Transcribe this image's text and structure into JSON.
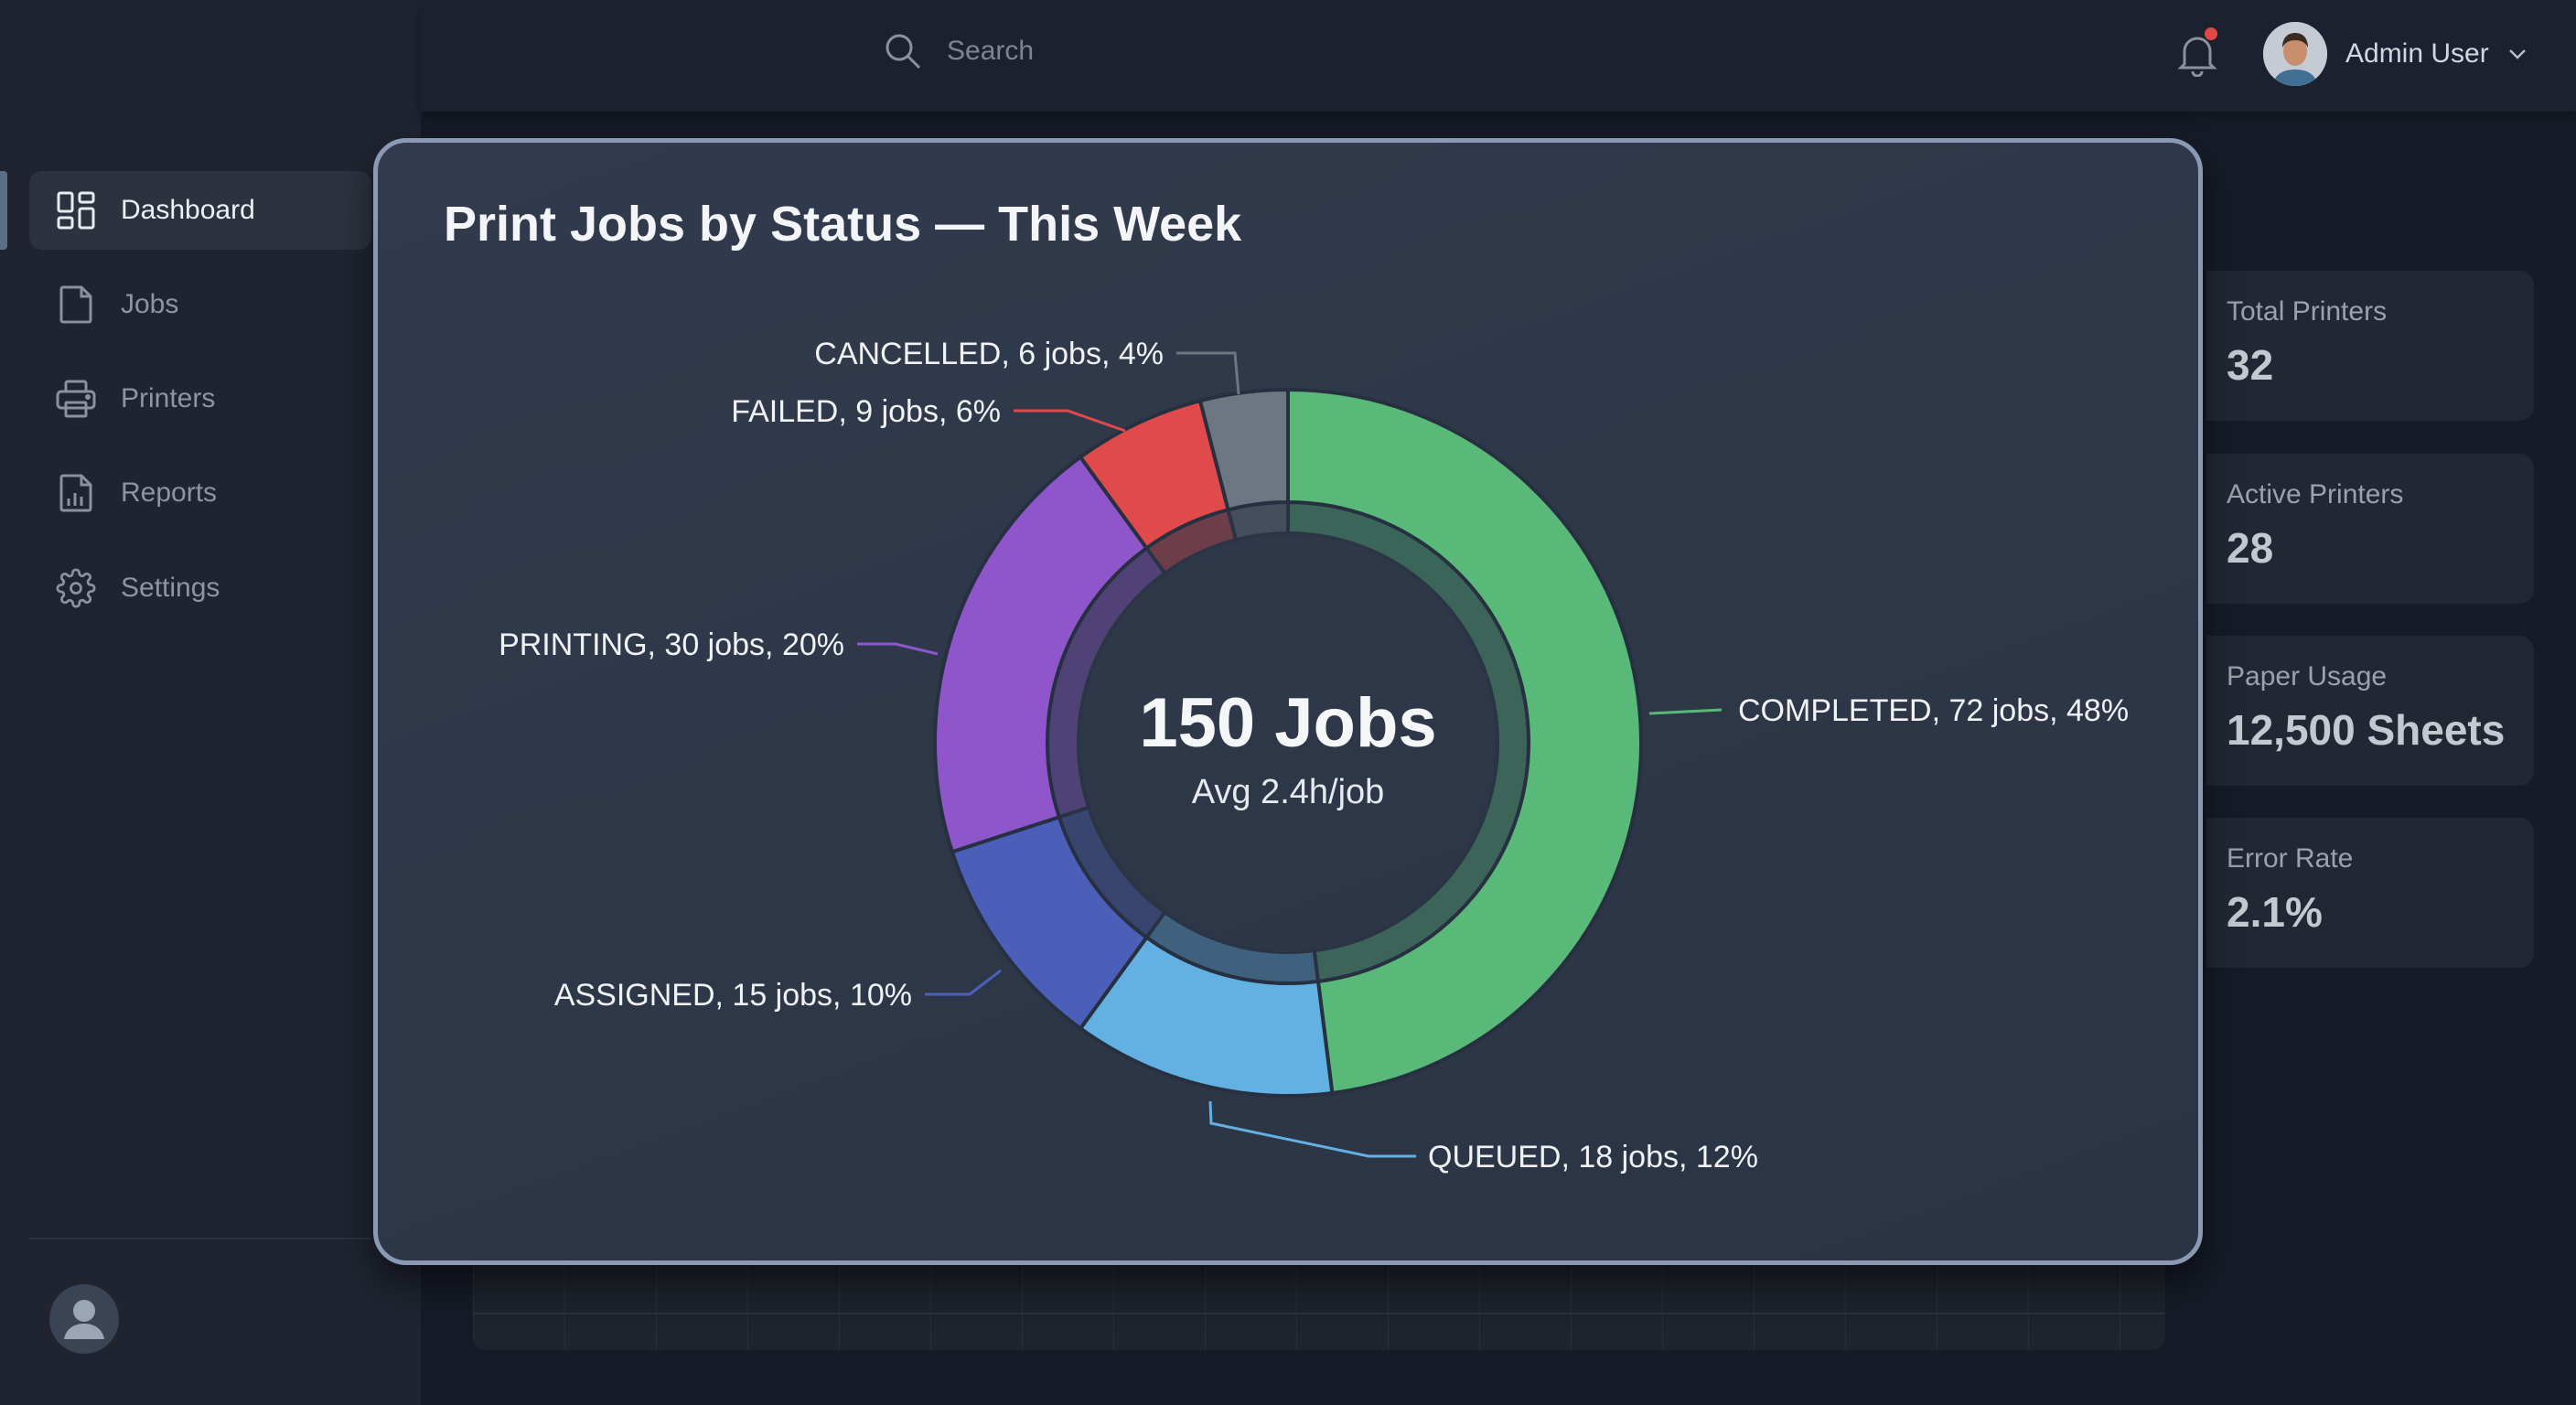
{
  "header": {
    "search_placeholder": "Search",
    "user_name": "Admin User",
    "notification_dot_color": "#e24848"
  },
  "sidebar": {
    "items": [
      {
        "label": "Dashboard",
        "icon": "dashboard-icon",
        "active": true
      },
      {
        "label": "Jobs",
        "icon": "file-icon"
      },
      {
        "label": "Printers",
        "icon": "printer-icon"
      },
      {
        "label": "Reports",
        "icon": "report-icon"
      },
      {
        "label": "Settings",
        "icon": "gear-icon"
      }
    ]
  },
  "stats": [
    {
      "label": "Total Printers",
      "value": "32"
    },
    {
      "label": "Active Printers",
      "value": "28"
    },
    {
      "label": "Paper Usage",
      "value": "12,500 Sheets"
    },
    {
      "label": "Error Rate",
      "value": "2.1%"
    }
  ],
  "chart_data": {
    "type": "pie",
    "variant": "donut",
    "title": "Print Jobs by Status — This Week",
    "center_value": "150 Jobs",
    "center_subtitle": "Avg 2.4h/job",
    "start": "top, clockwise",
    "slices": [
      {
        "name": "COMPLETED",
        "jobs": 72,
        "percent": 48,
        "color": "#58b978",
        "label": "COMPLETED, 72 jobs, 48%"
      },
      {
        "name": "QUEUED",
        "jobs": 18,
        "percent": 12,
        "color": "#63b1e3",
        "label": "QUEUED, 18 jobs, 12%"
      },
      {
        "name": "ASSIGNED",
        "jobs": 15,
        "percent": 10,
        "color": "#4c5fb8",
        "label": "ASSIGNED, 15 jobs, 10%"
      },
      {
        "name": "PRINTING",
        "jobs": 30,
        "percent": 20,
        "color": "#8e56ca",
        "label": "PRINTING, 30 jobs, 20%"
      },
      {
        "name": "FAILED",
        "jobs": 9,
        "percent": 6,
        "color": "#e04a4b",
        "label": "FAILED, 9 jobs, 6%"
      },
      {
        "name": "CANCELLED",
        "jobs": 6,
        "percent": 4,
        "color": "#6c7782",
        "label": "CANCELLED, 6 jobs, 4%"
      }
    ]
  }
}
